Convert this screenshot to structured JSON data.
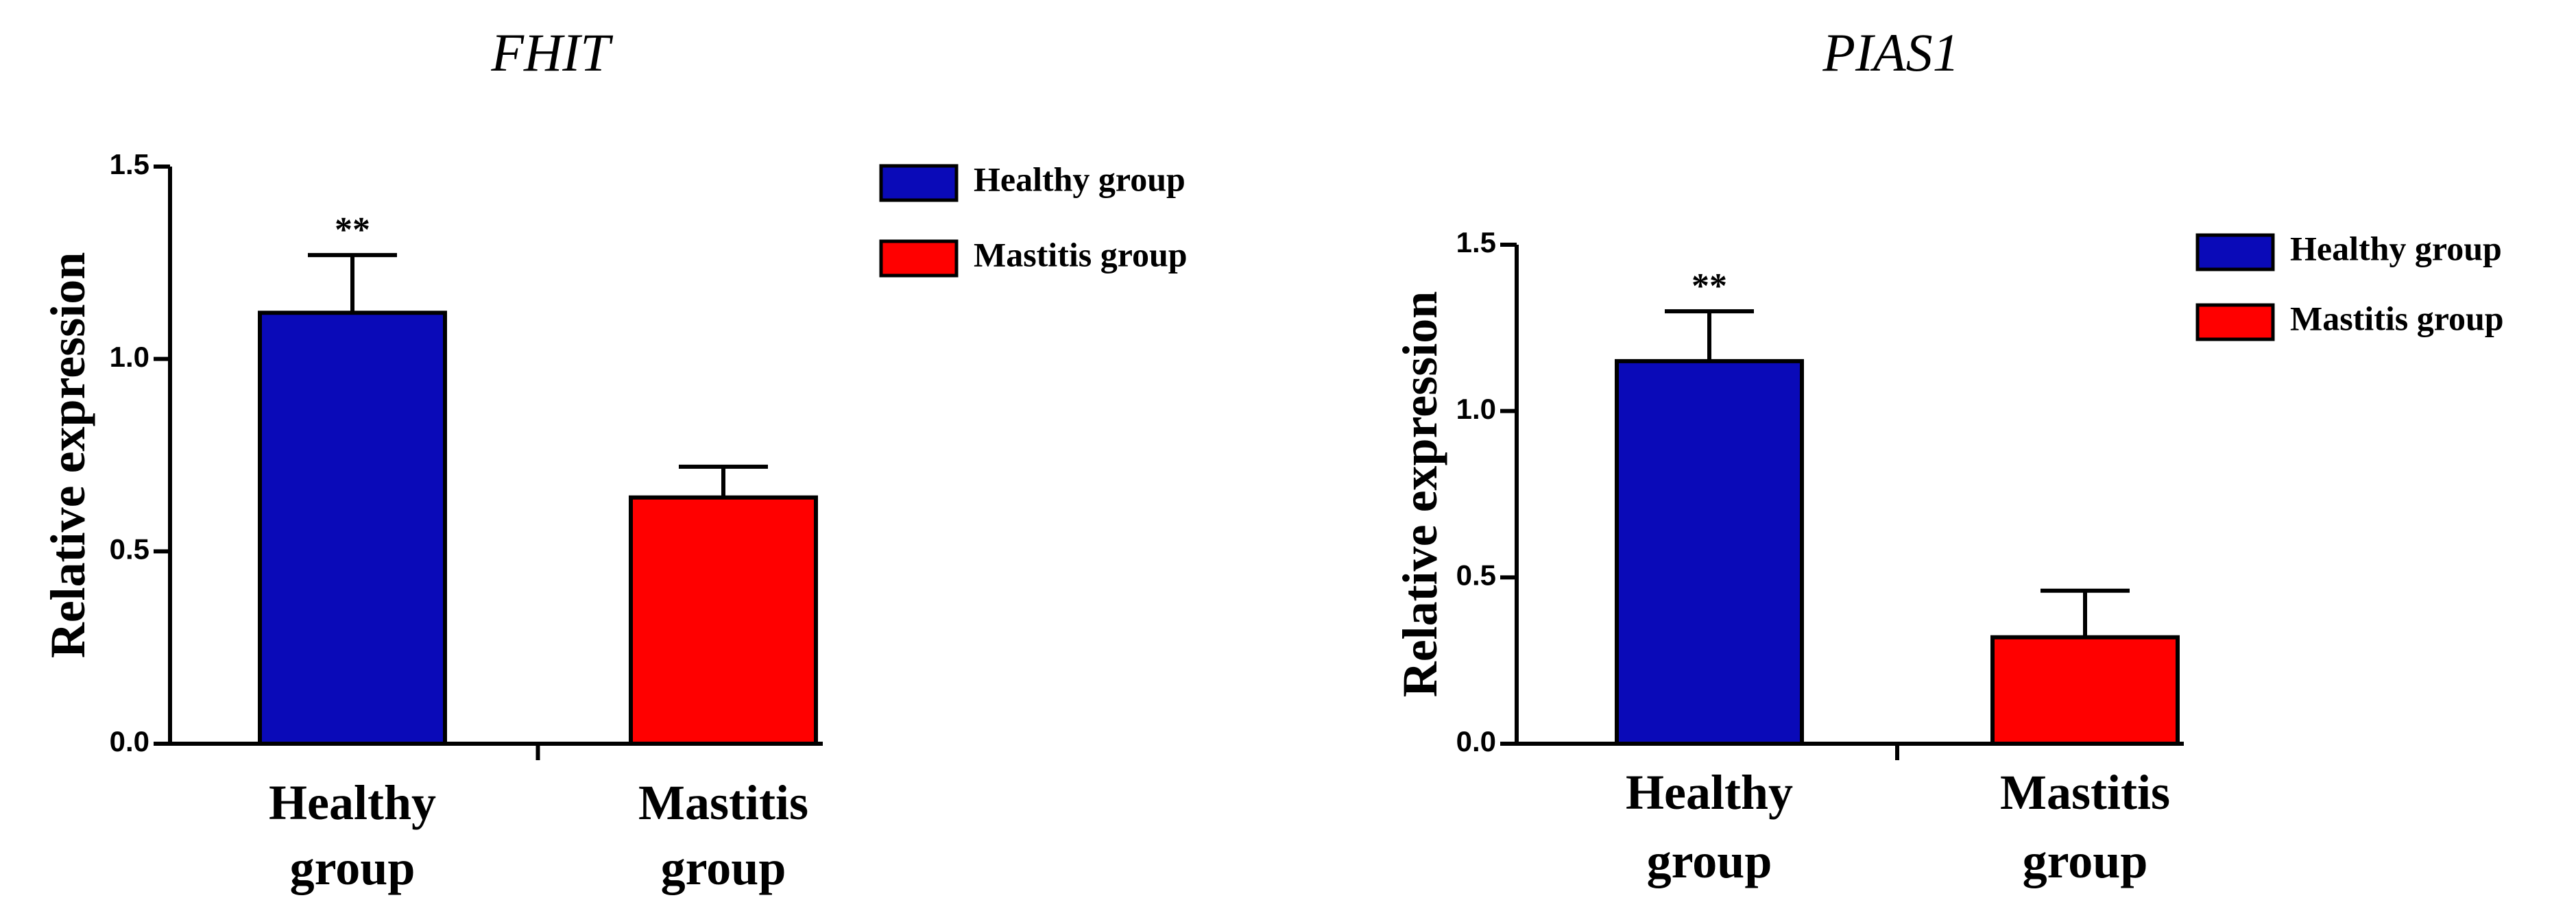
{
  "chart_data": [
    {
      "type": "bar",
      "title": "FHIT",
      "ylabel": "Relative expression",
      "categories": [
        [
          "Healthy",
          "group"
        ],
        [
          "Mastitis",
          "group"
        ]
      ],
      "values": [
        1.12,
        0.64
      ],
      "errors": [
        0.15,
        0.08
      ],
      "colors": [
        "#0a0ab8",
        "#ff0000"
      ],
      "significance": [
        "**",
        ""
      ],
      "ylim": [
        0,
        1.5
      ],
      "yticks": [
        "0.0",
        "0.5",
        "1.0",
        "1.5"
      ],
      "legend": [
        {
          "name": "Healthy group",
          "color": "#0a0ab8"
        },
        {
          "name": "Mastitis group",
          "color": "#ff0000"
        }
      ],
      "legend_position": "top-right",
      "grid": false
    },
    {
      "type": "bar",
      "title": "PIAS1",
      "ylabel": "Relative expression",
      "categories": [
        [
          "Healthy",
          "group"
        ],
        [
          "Mastitis",
          "group"
        ]
      ],
      "values": [
        1.15,
        0.32
      ],
      "errors": [
        0.15,
        0.14
      ],
      "colors": [
        "#0a0ab8",
        "#ff0000"
      ],
      "significance": [
        "**",
        ""
      ],
      "ylim": [
        0,
        1.5
      ],
      "yticks": [
        "0.0",
        "0.5",
        "1.0",
        "1.5"
      ],
      "legend": [
        {
          "name": "Healthy group",
          "color": "#0a0ab8"
        },
        {
          "name": "Mastitis group",
          "color": "#ff0000"
        }
      ],
      "legend_position": "top-right",
      "grid": false
    }
  ]
}
